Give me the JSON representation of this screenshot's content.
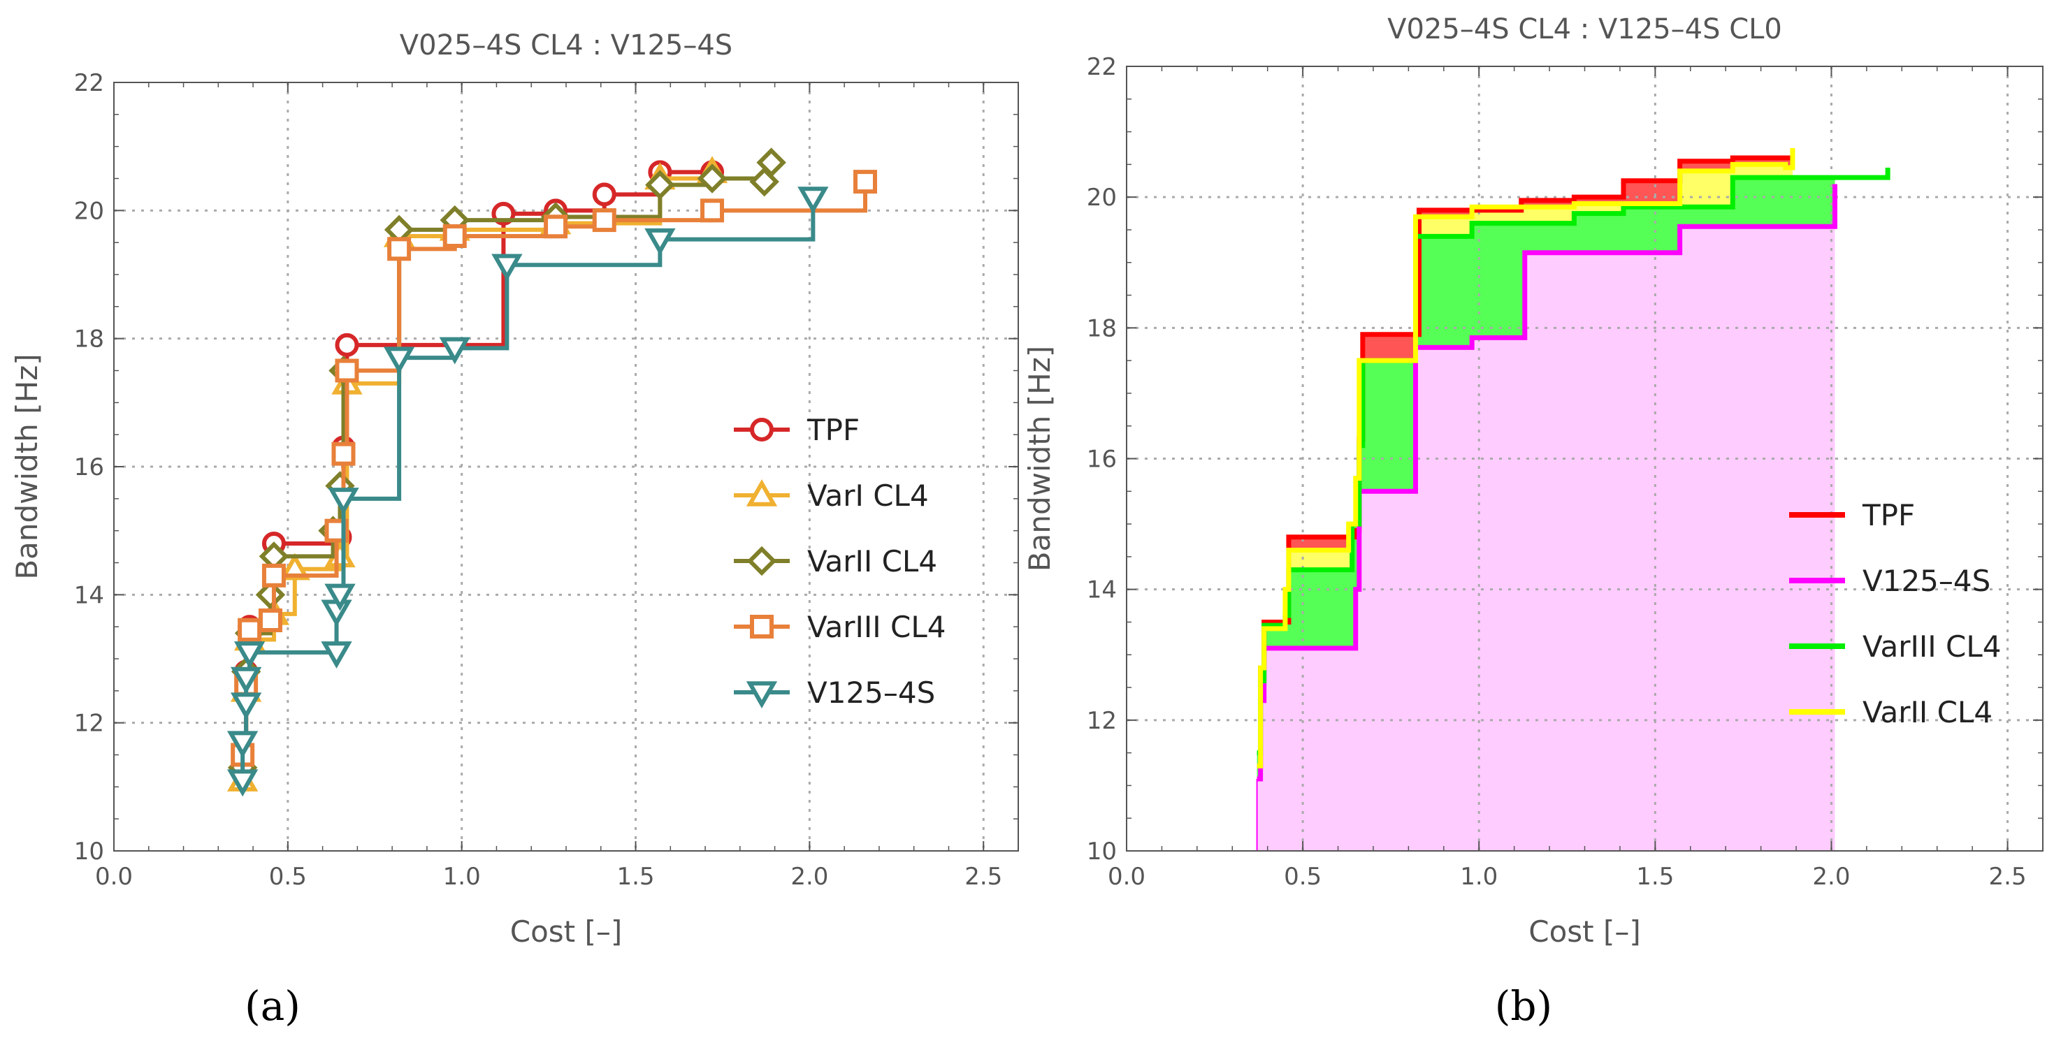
{
  "figure": {
    "panel_a_label": "(a)",
    "panel_b_label": "(b)"
  },
  "chart_data": [
    {
      "type": "line",
      "title": "V025–4S CL4 : V125–4S",
      "xlabel": "Cost [–]",
      "ylabel": "Bandwidth [Hz]",
      "xlim": [
        0,
        2.6
      ],
      "ylim": [
        10,
        22
      ],
      "xticks": [
        "0.0",
        "0.5",
        "1.0",
        "1.5",
        "2.0",
        "2.5"
      ],
      "yticks": [
        "10",
        "12",
        "14",
        "16",
        "18",
        "20",
        "22"
      ],
      "grid": true,
      "legend_position": "center-right",
      "series": [
        {
          "name": "TPF",
          "color": "#d62728",
          "marker": "circle",
          "x": [
            0.37,
            0.38,
            0.39,
            0.46,
            0.65,
            0.66,
            0.67,
            1.12,
            1.27,
            1.41,
            1.57,
            1.72
          ],
          "y": [
            11.3,
            12.8,
            13.5,
            14.8,
            14.9,
            16.3,
            17.9,
            19.95,
            20.0,
            20.25,
            20.6,
            20.6
          ]
        },
        {
          "name": "VarI CL4",
          "color": "#f0b030",
          "marker": "triangle-up",
          "x": [
            0.37,
            0.38,
            0.39,
            0.46,
            0.52,
            0.65,
            0.67,
            0.82,
            0.98,
            1.27,
            1.57,
            1.72
          ],
          "y": [
            11.1,
            12.5,
            13.3,
            13.7,
            14.4,
            14.6,
            17.3,
            19.6,
            19.7,
            19.8,
            20.5,
            20.6
          ]
        },
        {
          "name": "VarII CL4",
          "color": "#7f7f2a",
          "marker": "diamond",
          "x": [
            0.37,
            0.38,
            0.39,
            0.45,
            0.46,
            0.63,
            0.65,
            0.66,
            0.82,
            0.98,
            1.27,
            1.57,
            1.72,
            1.87,
            1.89
          ],
          "y": [
            11.3,
            12.8,
            13.4,
            14.0,
            14.6,
            15.0,
            15.7,
            17.5,
            19.7,
            19.85,
            19.9,
            20.4,
            20.5,
            20.45,
            20.75
          ]
        },
        {
          "name": "VarIII CL4",
          "color": "#e8803a",
          "marker": "square",
          "x": [
            0.37,
            0.38,
            0.39,
            0.45,
            0.46,
            0.64,
            0.66,
            0.67,
            0.82,
            0.98,
            1.27,
            1.41,
            1.72,
            2.16
          ],
          "y": [
            11.5,
            12.6,
            13.45,
            13.6,
            14.3,
            15.0,
            16.2,
            17.5,
            19.4,
            19.6,
            19.75,
            19.85,
            20.0,
            20.45
          ]
        },
        {
          "name": "V125–4S",
          "color": "#3a8a8a",
          "marker": "triangle-down",
          "x": [
            0.37,
            0.37,
            0.38,
            0.38,
            0.39,
            0.64,
            0.64,
            0.65,
            0.66,
            0.82,
            0.98,
            1.13,
            1.57,
            2.01
          ],
          "y": [
            11.1,
            11.7,
            12.3,
            12.7,
            13.1,
            13.1,
            13.75,
            14.0,
            15.5,
            17.7,
            17.85,
            19.15,
            19.55,
            20.2
          ]
        }
      ]
    },
    {
      "type": "area",
      "title": "V025–4S CL4 : V125–4S CL0",
      "xlabel": "Cost [–]",
      "ylabel": "Bandwidth [Hz]",
      "xlim": [
        0,
        2.6
      ],
      "ylim": [
        10,
        22
      ],
      "xticks": [
        "0.0",
        "0.5",
        "1.0",
        "1.5",
        "2.0",
        "2.5"
      ],
      "yticks": [
        "10",
        "12",
        "14",
        "16",
        "18",
        "20",
        "22"
      ],
      "grid": true,
      "legend_position": "center-right",
      "series": [
        {
          "name": "TPF",
          "color": "#ff0000",
          "fill": "#ff5555",
          "x": [
            0.37,
            0.38,
            0.39,
            0.46,
            0.65,
            0.66,
            0.67,
            0.83,
            1.12,
            1.27,
            1.41,
            1.57,
            1.72,
            1.89
          ],
          "y": [
            11.3,
            12.8,
            13.5,
            14.8,
            14.9,
            16.3,
            17.9,
            19.8,
            19.95,
            20.0,
            20.25,
            20.55,
            20.6,
            20.6
          ]
        },
        {
          "name": "V125–4S",
          "color": "#ff00ff",
          "fill": "#ffccff",
          "x": [
            0.37,
            0.38,
            0.39,
            0.64,
            0.65,
            0.66,
            0.82,
            0.98,
            1.13,
            1.57,
            2.01
          ],
          "y": [
            11.1,
            12.3,
            13.1,
            13.1,
            14.0,
            15.5,
            17.7,
            17.85,
            19.15,
            19.55,
            20.2
          ]
        },
        {
          "name": "VarIII CL4",
          "color": "#00ee00",
          "fill": "#55ff55",
          "x": [
            0.37,
            0.38,
            0.39,
            0.45,
            0.46,
            0.64,
            0.66,
            0.67,
            0.82,
            0.98,
            1.27,
            1.41,
            1.72,
            2.16
          ],
          "y": [
            11.5,
            12.6,
            13.45,
            13.6,
            14.3,
            15.0,
            16.2,
            17.5,
            19.4,
            19.6,
            19.75,
            19.85,
            20.3,
            20.45
          ]
        },
        {
          "name": "VarII CL4",
          "color": "#ffff00",
          "fill": "#ffff66",
          "x": [
            0.37,
            0.38,
            0.39,
            0.45,
            0.46,
            0.63,
            0.65,
            0.66,
            0.82,
            0.98,
            1.27,
            1.57,
            1.72,
            1.87,
            1.89
          ],
          "y": [
            11.3,
            12.8,
            13.4,
            14.0,
            14.6,
            15.0,
            15.7,
            17.5,
            19.7,
            19.85,
            19.9,
            20.4,
            20.5,
            20.45,
            20.75
          ]
        }
      ]
    }
  ]
}
